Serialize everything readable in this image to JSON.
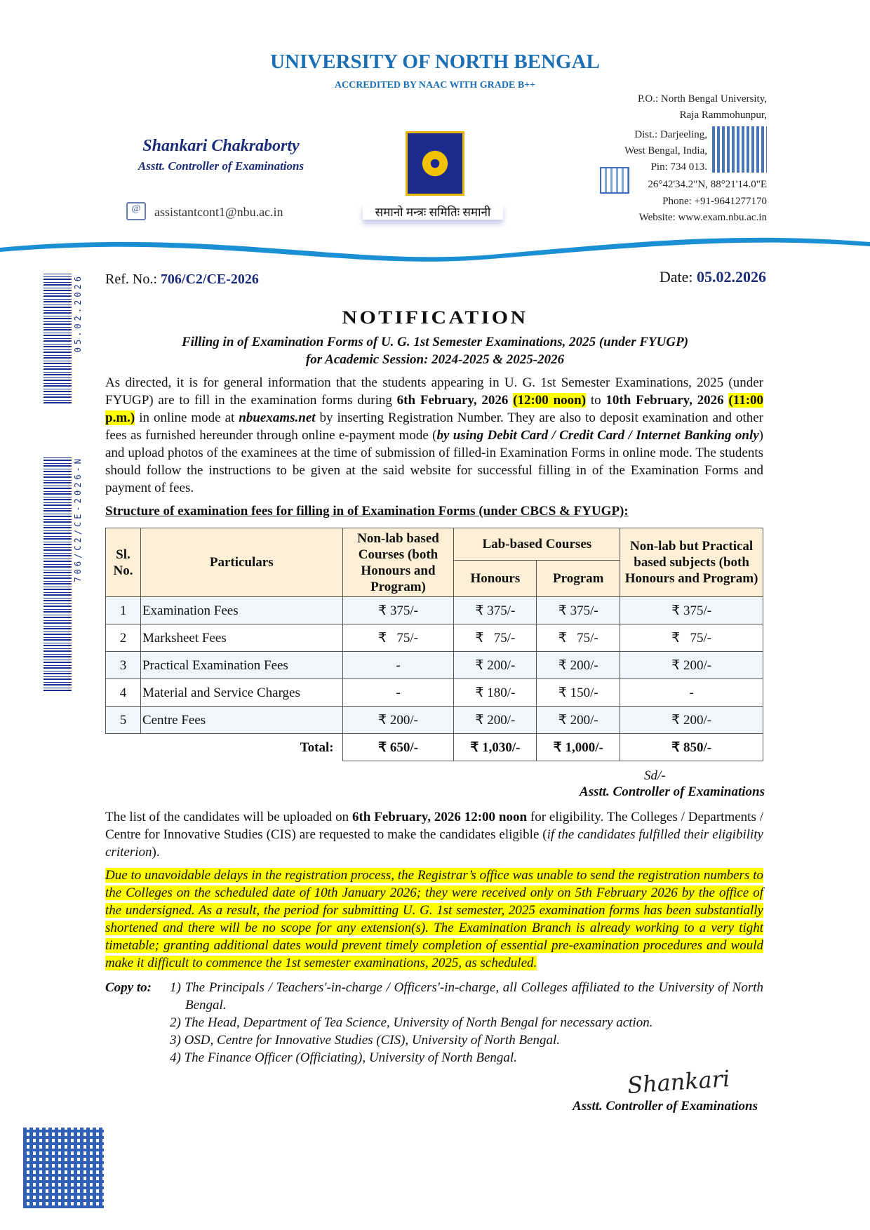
{
  "header": {
    "university": "UNIVERSITY OF NORTH BENGAL",
    "accreditation": "ACCREDITED BY NAAC WITH GRADE B++",
    "officer_name": "Shankari Chakraborty",
    "officer_designation": "Asstt. Controller of Examinations",
    "email": "assistantcont1@nbu.ac.in",
    "motto": "समानो मन्त्रः समितिः समानी",
    "address": [
      "P.O.: North Bengal University,",
      "Raja Rammohunpur,",
      "Dist.: Darjeeling,",
      "West Bengal, India,",
      "Pin: 734 013.",
      "26°42'34.2\"N, 88°21'14.0\"E",
      "Phone: +91-9641277170",
      "Website: www.exam.nbu.ac.in"
    ],
    "brand_color": "#1b6fb5"
  },
  "ref": {
    "label": "Ref. No.: ",
    "value": "706/C2/CE-2026"
  },
  "date": {
    "label": "Date: ",
    "value": "05.02.2026"
  },
  "title": "NOTIFICATION",
  "subtitle": [
    "Filling in of Examination Forms of U. G. 1st Semester Examinations, 2025 (under FYUGP)",
    "for Academic Session: 2024-2025 & 2025-2026"
  ],
  "para": {
    "p1": "As directed, it is for general information that the students appearing in U. G. 1st Semester Examinations, 2025 (under FYUGP) are to fill in the examination forms during ",
    "d1": "6th February, 2026",
    "t1": "(12:00 noon)",
    "p2": " to ",
    "d2": "10th February, 2026",
    "t2": "(11:00 p.m.)",
    "p3": " in online mode at ",
    "site": "nbuexams.net",
    "p4": " by inserting Registration Number. They are also to deposit examination and other fees as furnished hereunder through online e-payment mode (",
    "pay": "by using Debit Card / Credit Card / Internet Banking only",
    "p5": ") and upload photos of the examinees at the time of submission of filled-in Examination Forms in online mode. The students should follow the instructions to be given at the said website for successful filling in of the Examination Forms and payment of fees."
  },
  "table": {
    "heading": "Structure of examination fees for filling in of Examination Forms (under CBCS & FYUGP):",
    "headers": {
      "sl": "Sl. No.",
      "particulars": "Particulars",
      "nonlab": "Non-lab based Courses (both Honours and Program)",
      "lab": "Lab-based Courses",
      "honours": "Honours",
      "program": "Program",
      "practical": "Non-lab but Practical based subjects (both Honours and Program)"
    },
    "rows": [
      [
        "1",
        "Examination Fees",
        "₹ 375/-",
        "₹ 375/-",
        "₹ 375/-",
        "₹ 375/-"
      ],
      [
        "2",
        "Marksheet Fees",
        "₹   75/-",
        "₹   75/-",
        "₹   75/-",
        "₹   75/-"
      ],
      [
        "3",
        "Practical Examination Fees",
        "-",
        "₹ 200/-",
        "₹ 200/-",
        "₹ 200/-"
      ],
      [
        "4",
        "Material and Service Charges",
        "-",
        "₹ 180/-",
        "₹ 150/-",
        "-"
      ],
      [
        "5",
        "Centre Fees",
        "₹ 200/-",
        "₹ 200/-",
        "₹ 200/-",
        "₹ 200/-"
      ]
    ],
    "total": [
      "Total:",
      "₹ 650/-",
      "₹ 1,030/-",
      "₹ 1,000/-",
      "₹ 850/-"
    ]
  },
  "sd": "Sd/-",
  "signatory": "Asstt. Controller of Examinations",
  "list_para": {
    "p1": "The list of the candidates will be uploaded on ",
    "b1": "6th February, 2026 12:00 noon",
    "p2": " for eligibility. The Colleges / Departments / Centre for Innovative Studies (CIS) are requested to make the candidates eligible (",
    "i1": "if the candidates fulfilled their eligibility criterion",
    "p3": ")."
  },
  "delay_para": "Due to unavoidable delays in the registration process, the Registrar’s office was unable to send the registration numbers to the Colleges on the scheduled date of 10th January 2026; they were received only on 5th February 2026 by the office of the undersigned. As a result, the period for submitting U. G. 1st semester, 2025 examination forms has been substantially shortened and there will be no scope for any extension(s). The Examination Branch is already working to a very tight timetable; granting additional dates would prevent timely completion of essential pre-examination procedures and would make it difficult to commence the 1st semester examinations, 2025, as scheduled.",
  "copy_to": {
    "label": "Copy to:",
    "items": [
      "1) The Principals / Teachers'-in-charge / Officers'-in-charge, all Colleges affiliated to the University of North Bengal.",
      "2) The Head, Department of Tea Science, University of North Bengal for necessary action.",
      "3) OSD, Centre for Innovative Studies (CIS), University of North Bengal.",
      "4) The Finance Officer (Officiating), University of North Bengal."
    ]
  },
  "signature": "Shankari",
  "barcodes": [
    "05.02.2026",
    "706/C2/CE-2026-N"
  ],
  "highlight_color": "#ffff00"
}
